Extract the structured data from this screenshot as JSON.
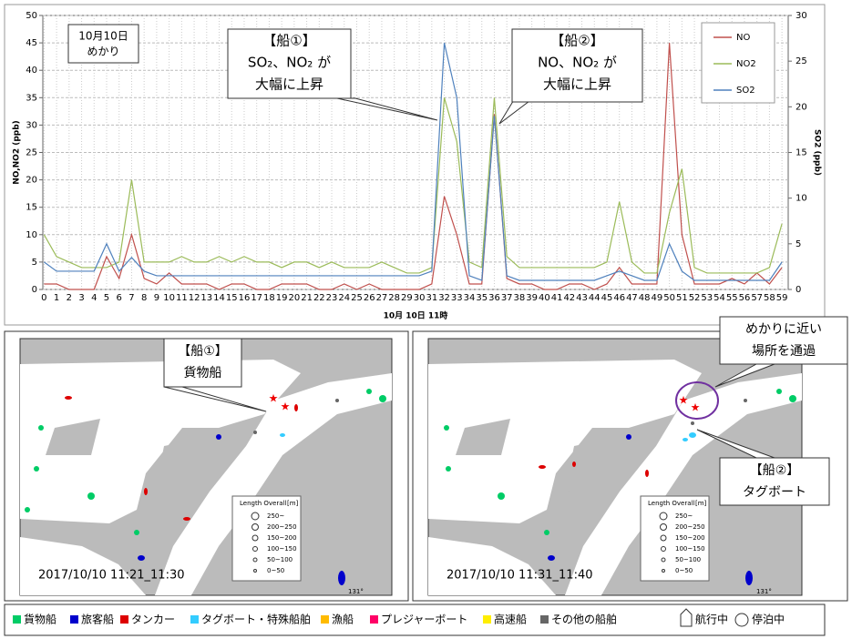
{
  "chart_data": {
    "type": "line",
    "x_label": "10月 10日 11時",
    "y_label": "NO,NO2 (ppb)",
    "y2_label": "SO2 (ppb)",
    "categories": [
      "0",
      "1",
      "2",
      "3",
      "4",
      "5",
      "6",
      "7",
      "8",
      "9",
      "10",
      "11",
      "12",
      "13",
      "14",
      "15",
      "16",
      "17",
      "18",
      "19",
      "20",
      "21",
      "22",
      "23",
      "24",
      "25",
      "26",
      "27",
      "28",
      "29",
      "30",
      "31",
      "32",
      "33",
      "34",
      "35",
      "36",
      "37",
      "38",
      "39",
      "40",
      "41",
      "42",
      "43",
      "44",
      "45",
      "46",
      "47",
      "48",
      "49",
      "50",
      "51",
      "52",
      "53",
      "54",
      "55",
      "56",
      "57",
      "58",
      "59"
    ],
    "ylim": [
      0,
      50
    ],
    "yticks": [
      0,
      5,
      10,
      15,
      20,
      25,
      30,
      35,
      40,
      45,
      50
    ],
    "y2lim": [
      0,
      30
    ],
    "y2ticks": [
      0,
      5,
      10,
      15,
      20,
      25,
      30
    ],
    "grid": true,
    "legend": "upper right",
    "series": [
      {
        "name": "NO",
        "color": "#c0504d",
        "values": [
          1,
          1,
          0,
          0,
          0,
          6,
          2,
          10,
          2,
          1,
          3,
          1,
          1,
          1,
          0,
          1,
          1,
          0,
          0,
          1,
          1,
          1,
          0,
          0,
          1,
          0,
          1,
          0,
          0,
          0,
          0,
          1,
          17,
          10,
          1,
          1,
          32,
          2,
          1,
          1,
          0,
          0,
          1,
          1,
          0,
          1,
          4,
          1,
          1,
          1,
          45,
          10,
          1,
          1,
          1,
          2,
          1,
          3,
          1,
          4
        ]
      },
      {
        "name": "NO2",
        "color": "#9bbb59",
        "values": [
          10,
          6,
          5,
          4,
          4,
          4,
          5,
          20,
          5,
          5,
          5,
          6,
          5,
          5,
          6,
          5,
          6,
          5,
          5,
          4,
          5,
          5,
          4,
          5,
          4,
          4,
          4,
          5,
          4,
          3,
          3,
          4,
          35,
          27,
          5,
          4,
          35,
          6,
          4,
          4,
          4,
          4,
          4,
          4,
          4,
          5,
          16,
          5,
          3,
          3,
          14,
          22,
          4,
          3,
          3,
          3,
          3,
          3,
          4,
          12
        ]
      },
      {
        "name": "SO2",
        "color": "#4f81bd",
        "axis": "y2",
        "values": [
          3,
          2,
          2,
          2,
          2,
          5,
          2,
          3.5,
          2,
          1.5,
          1.5,
          1.5,
          1.5,
          1.5,
          1.5,
          1.5,
          1.5,
          1.5,
          1.5,
          1.5,
          1.5,
          1.5,
          1.5,
          1.5,
          1.5,
          1.5,
          1.5,
          1.5,
          1.5,
          1.5,
          1.5,
          2,
          27,
          21,
          1.5,
          1,
          19,
          1.5,
          1,
          1,
          1,
          1,
          1,
          1,
          1,
          1.5,
          2,
          1.5,
          1,
          1,
          5,
          2,
          1,
          1,
          1,
          1,
          1,
          1,
          1,
          3
        ]
      }
    ],
    "annotations": [
      {
        "lines": [
          "10月10日",
          "めかり"
        ]
      },
      {
        "lines": [
          "【船①】",
          "SO₂、NO₂ が",
          "大幅に上昇"
        ]
      },
      {
        "lines": [
          "【船②】",
          "NO、NO₂ が",
          "大幅に上昇"
        ]
      }
    ]
  },
  "maps": [
    {
      "caption": "2017/10/10 11:21_11:30",
      "callouts": [
        {
          "lines": [
            "【船①】",
            "貨物船"
          ]
        }
      ],
      "longitude": "131°"
    },
    {
      "caption": "2017/10/10 11:31_11:40",
      "callouts": [
        {
          "lines": [
            "めかりに近い",
            "場所を通過"
          ]
        },
        {
          "lines": [
            "【船②】",
            "タグボート"
          ]
        }
      ],
      "longitude": "131°"
    }
  ],
  "length_legend": {
    "title": "Length Overall",
    "unit": "[m]",
    "items": [
      "250~",
      "200~250",
      "150~200",
      "100~150",
      "50~100",
      "0~50"
    ]
  },
  "ship_legend": [
    {
      "name": "貨物船",
      "color": "#00cc66"
    },
    {
      "name": "旅客船",
      "color": "#0000cc"
    },
    {
      "name": "タンカー",
      "color": "#dd0000"
    },
    {
      "name": "タグボート・特殊船舶",
      "color": "#33ccff"
    },
    {
      "name": "漁船",
      "color": "#ffbb00"
    },
    {
      "name": "プレジャーボート",
      "color": "#ff0066"
    },
    {
      "name": "高速船",
      "color": "#ffee00"
    },
    {
      "name": "その他の船舶",
      "color": "#666666"
    }
  ],
  "status_legend": [
    "航行中",
    "停泊中"
  ]
}
